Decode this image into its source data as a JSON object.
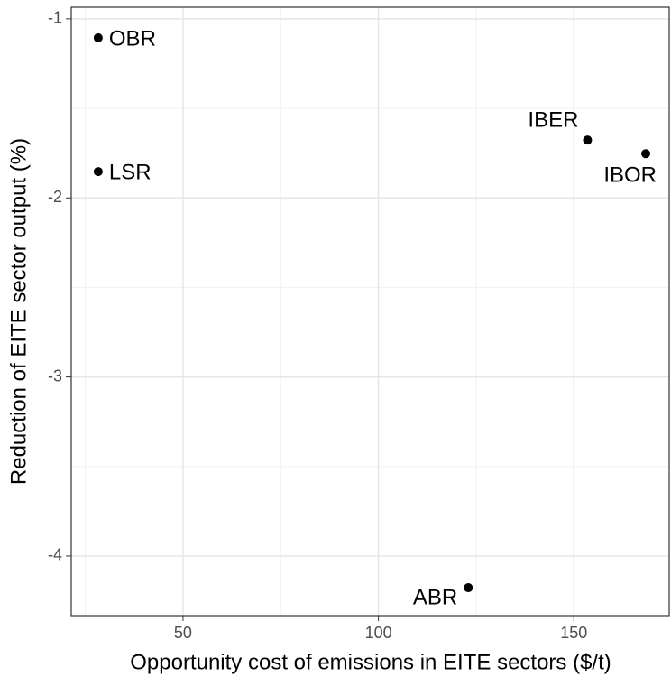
{
  "chart_data": {
    "type": "scatter",
    "x_label": "Opportunity cost of emissions in EITE sectors ($/t)",
    "y_label": "Reduction of EITE sector output (%)",
    "point_labels": [
      "OBR",
      "LSR",
      "IBER",
      "IBOR",
      "ABR"
    ],
    "x": [
      28.3,
      28.3,
      153.5,
      168.4,
      123.0
    ],
    "values": [
      -1.106,
      -1.853,
      -1.677,
      -1.753,
      -4.177
    ],
    "color": "#000000",
    "xlim": [
      21.4,
      174.4
    ],
    "ylim": [
      -4.333,
      -0.935
    ],
    "xticks": [
      50,
      100,
      150
    ],
    "yticks": [
      -4,
      -3,
      -2,
      -1
    ],
    "grid": true,
    "minor_grid": true
  }
}
